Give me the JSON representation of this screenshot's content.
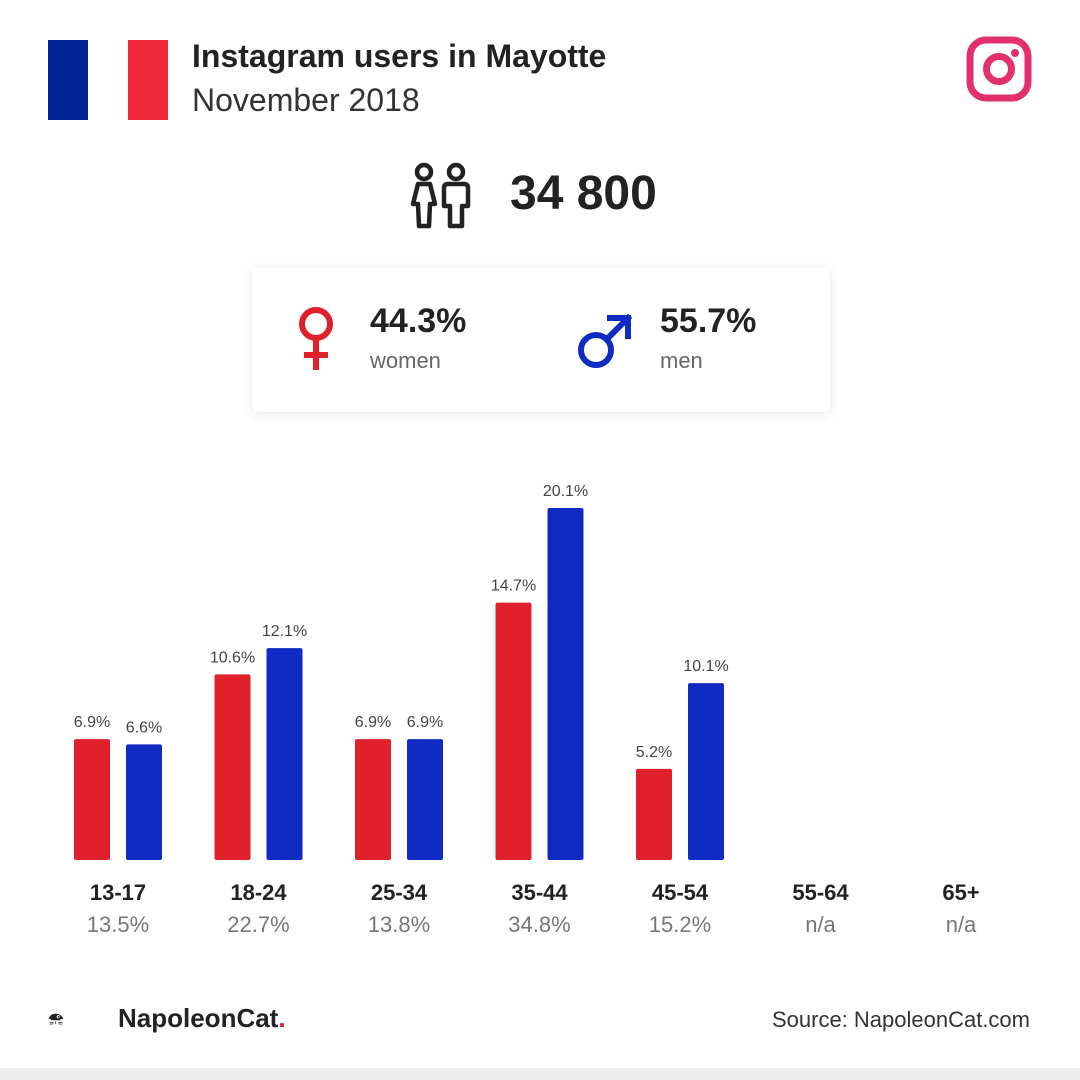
{
  "header": {
    "title": "Instagram users in Mayotte",
    "subtitle": "November 2018",
    "flag_colors": [
      "#002395",
      "#FFFFFF",
      "#ED2939"
    ],
    "brand_icon": "instagram-icon"
  },
  "summary": {
    "total_users": "34 800",
    "icon": "users-icon",
    "women": {
      "percent": "44.3%",
      "label": "women",
      "color": "#E0202A",
      "icon": "female-icon"
    },
    "men": {
      "percent": "55.7%",
      "label": "men",
      "color": "#0F2BC4",
      "icon": "male-icon"
    }
  },
  "chart_data": {
    "type": "bar",
    "categories": [
      "13-17",
      "18-24",
      "25-34",
      "35-44",
      "45-54",
      "55-64",
      "65+"
    ],
    "totals": [
      "13.5%",
      "22.7%",
      "13.8%",
      "34.8%",
      "15.2%",
      "n/a",
      "n/a"
    ],
    "series": [
      {
        "name": "women",
        "color": "#E0202A",
        "values": [
          6.9,
          10.6,
          6.9,
          14.7,
          5.2,
          null,
          null
        ],
        "labels": [
          "6.9%",
          "10.6%",
          "6.9%",
          "14.7%",
          "5.2%",
          "",
          ""
        ]
      },
      {
        "name": "men",
        "color": "#0F2BC4",
        "values": [
          6.6,
          12.1,
          6.9,
          20.1,
          10.1,
          null,
          null
        ],
        "labels": [
          "6.6%",
          "12.1%",
          "6.9%",
          "20.1%",
          "10.1%",
          "",
          ""
        ]
      }
    ],
    "ylim": [
      0,
      20.1
    ],
    "grid": false,
    "legend": "none"
  },
  "footer": {
    "brand_name": "NapoleonCat",
    "brand_dot": ".",
    "source": "Source: NapoleonCat.com"
  }
}
